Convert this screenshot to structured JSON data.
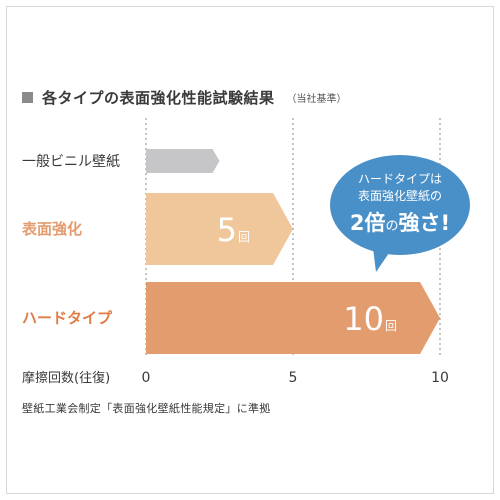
{
  "title": "各タイプの表面強化性能試験結果",
  "title_note": "（当社基準）",
  "footer_note": "壁紙工業会制定「表面強化壁紙性能規定」に準拠",
  "callout": {
    "line1": "ハードタイプは",
    "line2": "表面強化壁紙の",
    "line3_big": "2倍",
    "line3_small": "の",
    "line3_big2": "強さ!"
  },
  "colors": {
    "callout": "#4a90c8",
    "vinyl": "#c6c6c8",
    "surface": "#f0c79a",
    "hard": "#e39c6e",
    "surface_label": "#e39c6e",
    "hard_label": "#e07c45"
  },
  "chart_data": {
    "type": "bar",
    "orientation": "horizontal",
    "categories": [
      "一般ビニル壁紙",
      "表面強化",
      "ハードタイプ"
    ],
    "values": [
      2.5,
      5,
      10
    ],
    "value_labels": [
      "",
      "5",
      "10"
    ],
    "value_unit": "回",
    "xlabel": "摩擦回数(往復)",
    "xticks": [
      "0",
      "5",
      "10"
    ],
    "xlim": [
      0,
      10
    ],
    "grid": true
  }
}
